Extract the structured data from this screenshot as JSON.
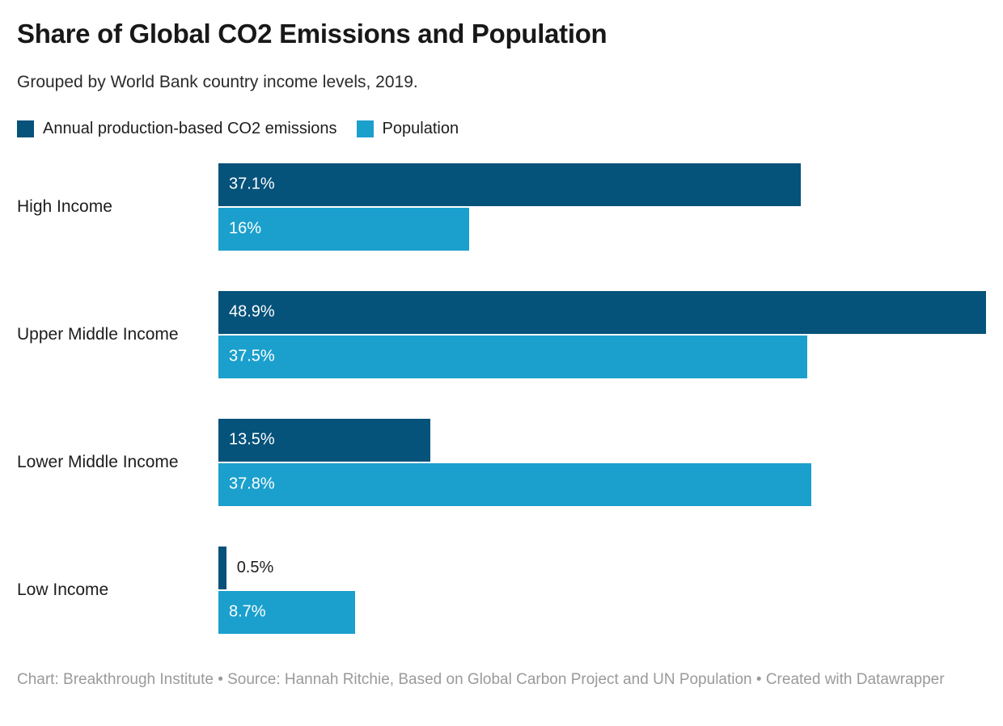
{
  "header": {
    "title": "Share of Global CO2 Emissions and Population",
    "subtitle": "Grouped by World Bank country income levels, 2019."
  },
  "chart_data": {
    "type": "bar",
    "orientation": "horizontal",
    "title": "Share of Global CO2 Emissions and Population",
    "subtitle": "Grouped by World Bank country income levels, 2019.",
    "categories": [
      "High Income",
      "Upper Middle Income",
      "Lower Middle Income",
      "Low Income"
    ],
    "series": [
      {
        "name": "Annual production-based CO2 emissions",
        "color": "#05527a",
        "values": [
          37.1,
          48.9,
          13.5,
          0.5
        ],
        "labels": [
          "37.1%",
          "48.9%",
          "13.5%",
          "0.5%"
        ]
      },
      {
        "name": "Population",
        "color": "#1ba0cd",
        "values": [
          16,
          37.5,
          37.8,
          8.7
        ],
        "labels": [
          "16%",
          "37.5%",
          "37.8%",
          "8.7%"
        ]
      }
    ],
    "xlim": [
      0,
      50
    ],
    "grid": false,
    "legend_position": "top",
    "value_label_style": "inside bar start, dark outside label when bar too narrow"
  },
  "footer": {
    "text": "Chart: Breakthrough Institute • Source: Hannah Ritchie, Based on Global Carbon Project and UN Population • Created with Datawrapper"
  },
  "colors": {
    "background": "#ffffff",
    "title_text": "#181818",
    "body_text": "#1d1d1d",
    "footer_text": "#9a9a9a",
    "value_label_inside": "#ffffff"
  }
}
